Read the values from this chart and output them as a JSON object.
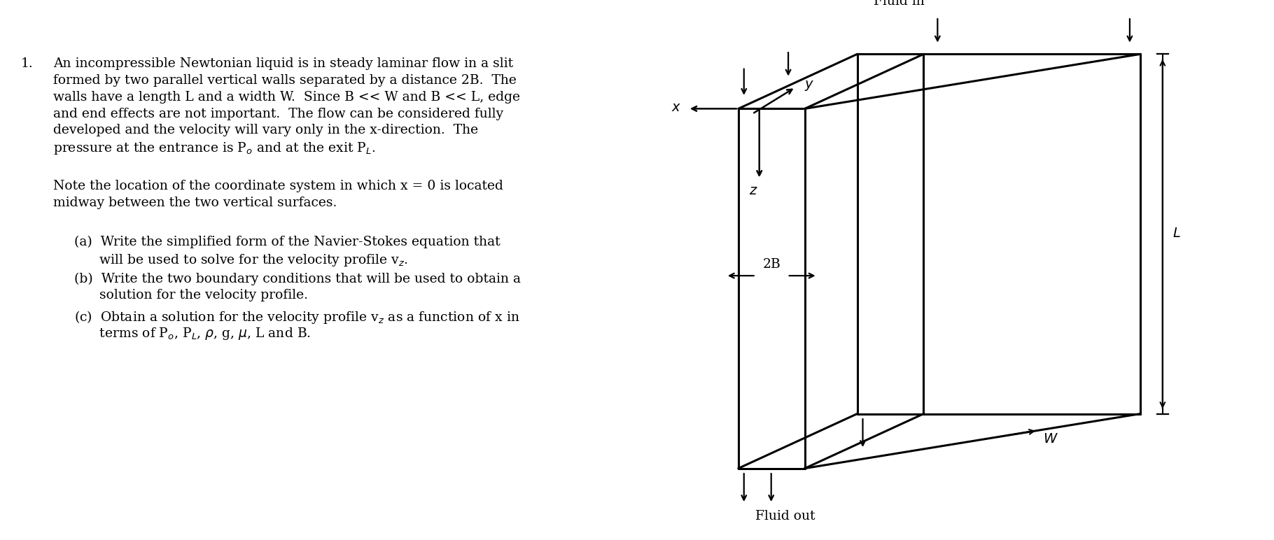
{
  "background_color": "#ffffff",
  "text_color": "#000000",
  "fig_width": 18.2,
  "fig_height": 7.72,
  "lines_p1": [
    "An incompressible Newtonian liquid is in steady laminar flow in a slit",
    "formed by two parallel vertical walls separated by a distance 2B.  The",
    "walls have a length L and a width W.  Since B << W and B << L, edge",
    "and end effects are not important.  The flow can be considered fully",
    "developed and the velocity will vary only in the x-direction.  The",
    "pressure at the entrance is P$_o$ and at the exit P$_L$."
  ],
  "lines_p2": [
    "Note the location of the coordinate system in which x = 0 is located",
    "midway between the two vertical surfaces."
  ],
  "item_a_1": "(a)  Write the simplified form of the Navier-Stokes equation that",
  "item_a_2": "      will be used to solve for the velocity profile v$_z$.",
  "item_b_1": "(b)  Write the two boundary conditions that will be used to obtain a",
  "item_b_2": "      solution for the velocity profile.",
  "item_c_1": "(c)  Obtain a solution for the velocity profile v$_z$ as a function of x in",
  "item_c_2": "      terms of P$_o$, P$_L$, $\\rho$, g, $\\mu$, L and B.",
  "problem_number": "1.",
  "label_fluid_in": "Fluid in",
  "label_fluid_out": "Fluid out",
  "label_x": "$x$",
  "label_y": "$y$",
  "label_z": "$z$",
  "label_L": "$L$",
  "label_W": "$W$",
  "label_2B": "2B"
}
